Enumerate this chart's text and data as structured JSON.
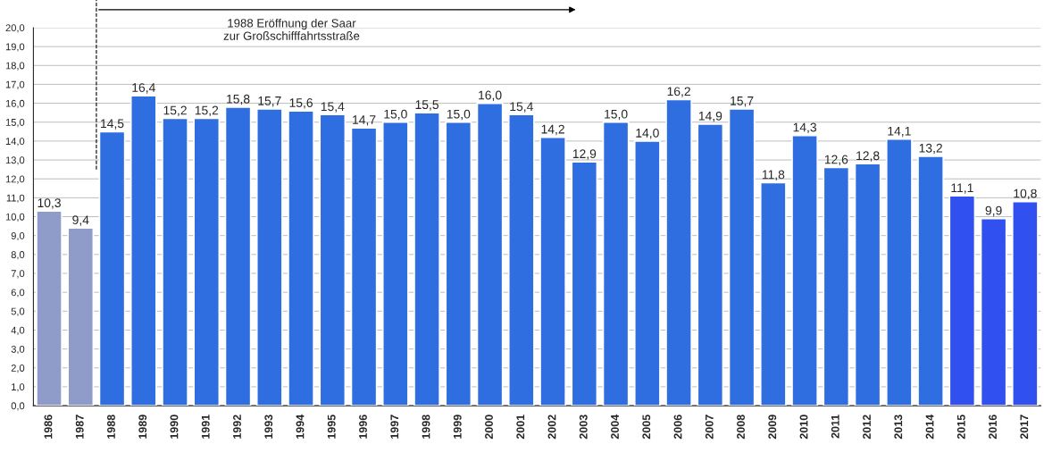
{
  "chart_data": {
    "type": "bar",
    "categories": [
      "1986",
      "1987",
      "1988",
      "1989",
      "1990",
      "1991",
      "1992",
      "1993",
      "1994",
      "1995",
      "1996",
      "1997",
      "1998",
      "1999",
      "2000",
      "2001",
      "2002",
      "2003",
      "2004",
      "2005",
      "2006",
      "2007",
      "2008",
      "2009",
      "2010",
      "2011",
      "2012",
      "2013",
      "2014",
      "2015",
      "2016",
      "2017"
    ],
    "values": [
      10.3,
      9.4,
      14.5,
      16.4,
      15.2,
      15.2,
      15.8,
      15.7,
      15.6,
      15.4,
      14.7,
      15.0,
      15.5,
      15.0,
      16.0,
      15.4,
      14.2,
      12.9,
      15.0,
      14.0,
      16.2,
      14.9,
      15.7,
      11.8,
      14.3,
      12.6,
      12.8,
      14.1,
      13.2,
      11.1,
      9.9,
      10.8
    ],
    "value_labels": [
      "10,3",
      "9,4",
      "14,5",
      "16,4",
      "15,2",
      "15,2",
      "15,8",
      "15,7",
      "15,6",
      "15,4",
      "14,7",
      "15,0",
      "15,5",
      "15,0",
      "16,0",
      "15,4",
      "14,2",
      "12,9",
      "15,0",
      "14,0",
      "16,2",
      "14,9",
      "15,7",
      "11,8",
      "14,3",
      "12,6",
      "12,8",
      "14,1",
      "13,2",
      "11,1",
      "9,9",
      "10,8"
    ],
    "colors": [
      "#8f9cc9",
      "#8f9cc9",
      "#2f6ee0",
      "#2f6ee0",
      "#2f6ee0",
      "#2f6ee0",
      "#2f6ee0",
      "#2f6ee0",
      "#2f6ee0",
      "#2f6ee0",
      "#2f6ee0",
      "#2f6ee0",
      "#2f6ee0",
      "#2f6ee0",
      "#2f6ee0",
      "#2f6ee0",
      "#2f6ee0",
      "#2f6ee0",
      "#2f6ee0",
      "#2f6ee0",
      "#2f6ee0",
      "#2f6ee0",
      "#2f6ee0",
      "#2f6ee0",
      "#2f6ee0",
      "#2f6ee0",
      "#2f6ee0",
      "#2f6ee0",
      "#2f6ee0",
      "#3050f0",
      "#3050f0",
      "#3050f0"
    ],
    "ylim": [
      0,
      20
    ],
    "yticks": [
      {
        "value": 0,
        "label": "0,0"
      },
      {
        "value": 1,
        "label": "1,0"
      },
      {
        "value": 2,
        "label": "2,0"
      },
      {
        "value": 3,
        "label": "3,0"
      },
      {
        "value": 4,
        "label": "4,0"
      },
      {
        "value": 5,
        "label": "5,0"
      },
      {
        "value": 6,
        "label": "6,0"
      },
      {
        "value": 7,
        "label": "7,0"
      },
      {
        "value": 8,
        "label": "8,0"
      },
      {
        "value": 9,
        "label": "9,0"
      },
      {
        "value": 10,
        "label": "10,0"
      },
      {
        "value": 11,
        "label": "11,0"
      },
      {
        "value": 12,
        "label": "12,0"
      },
      {
        "value": 13,
        "label": "13,0"
      },
      {
        "value": 14,
        "label": "14,0"
      },
      {
        "value": 15,
        "label": "15,0"
      },
      {
        "value": 16,
        "label": "16,0"
      },
      {
        "value": 17,
        "label": "17,0"
      },
      {
        "value": 18,
        "label": "18,0"
      },
      {
        "value": 19,
        "label": "19,0"
      },
      {
        "value": 20,
        "label": "20,0"
      }
    ],
    "grid": "y",
    "ref_lines": [
      {
        "axis": "x",
        "value": "1988",
        "line_style": "dashed",
        "color": "#000000"
      }
    ],
    "annotations": [
      "1988 Eröffnung der Saar\nzur Großschifffahrtsstraße"
    ]
  }
}
